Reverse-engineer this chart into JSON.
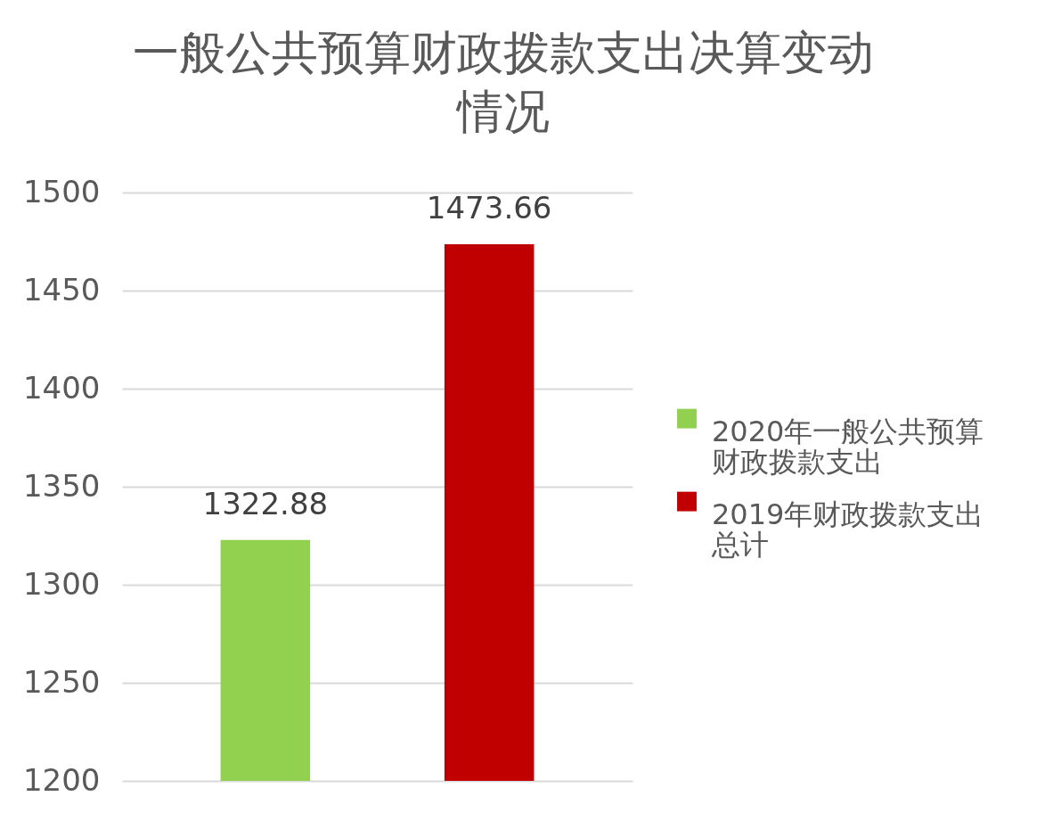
{
  "chart_data": {
    "type": "bar",
    "title": "一般公共预算财政拨款支出决算变动情况",
    "categories": [
      null
    ],
    "series": [
      {
        "name": "2020年一般公共预算财政拨款支出",
        "color": "#92d050",
        "values": [
          1322.88
        ]
      },
      {
        "name": "2019年财政拨款支出总计",
        "color": "#c00000",
        "values": [
          1473.66
        ]
      }
    ],
    "ylim": [
      1200,
      1500
    ],
    "yticks": [
      1200,
      1250,
      1300,
      1350,
      1400,
      1450,
      1500
    ],
    "grid": "y",
    "legend": "right",
    "tick_labels": "y",
    "data_labels": true
  }
}
